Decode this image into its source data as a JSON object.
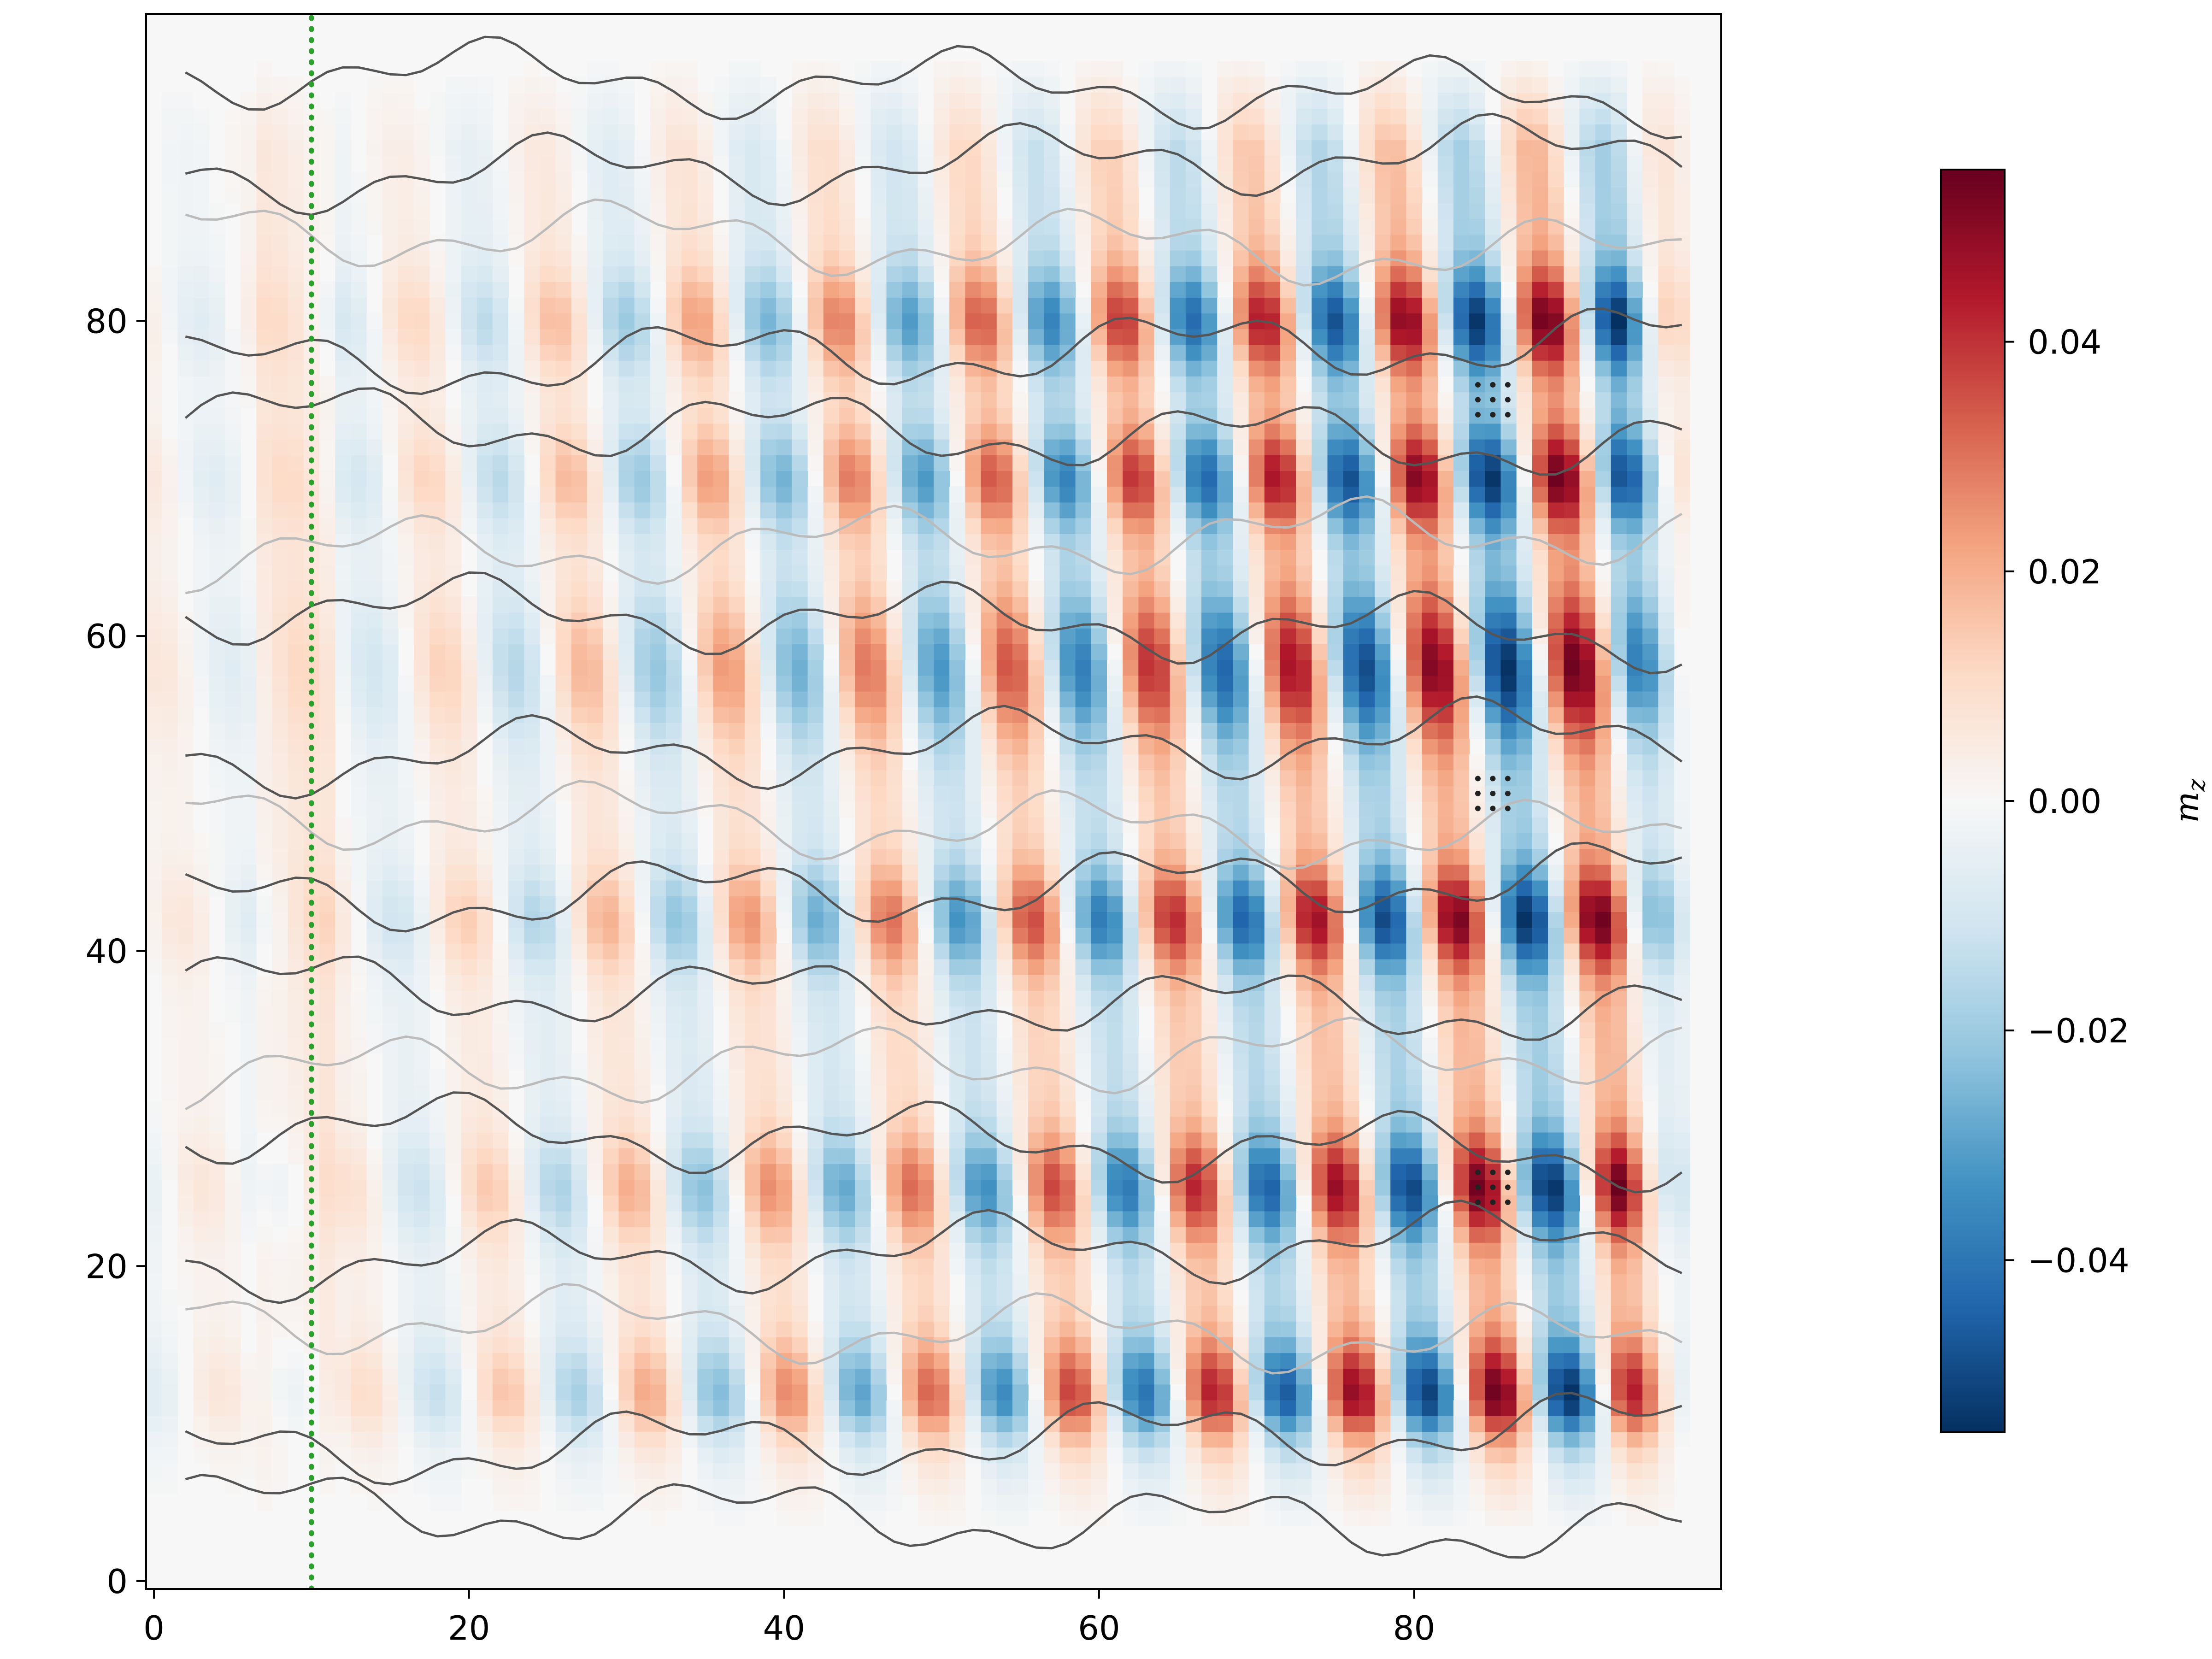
{
  "chart_data": {
    "type": "heatmap",
    "title": "",
    "xlabel": "",
    "ylabel": "",
    "xlim": [
      -0.5,
      99.5
    ],
    "ylim": [
      -0.5,
      99.5
    ],
    "x_ticks": [
      "0",
      "20",
      "40",
      "60",
      "80"
    ],
    "y_ticks": [
      "0",
      "20",
      "40",
      "60",
      "80"
    ],
    "grid": false,
    "colormap": "diverging blue-white-red (RdBu_r)",
    "colorbar": {
      "label": "m_z",
      "label_main": "m",
      "label_sub": "z",
      "range": [
        -0.055,
        0.055
      ],
      "ticks": [
        "0.04",
        "0.02",
        "0.00",
        "−0.02",
        "−0.04"
      ],
      "tick_values": [
        0.04,
        0.02,
        0.0,
        -0.02,
        -0.04
      ]
    },
    "field": {
      "description_of_pattern": "vertical stripes alternating in sign every ~4.5 columns, amplitude growing with x; stronger horizontal bands near y≈12, 25, 42, 58, 70, 80",
      "stripe_period_x": 9,
      "band_centers_y": [
        12,
        25,
        42,
        58,
        70,
        80
      ],
      "max_abs_value": 0.055
    },
    "overlays": {
      "source_line": {
        "style": "dotted",
        "color": "#2ca02c",
        "x": 10
      },
      "dot_markers": [
        {
          "x": 85,
          "y": 75
        },
        {
          "x": 85,
          "y": 50
        },
        {
          "x": 85,
          "y": 25
        }
      ],
      "contours": {
        "colors": [
          "#555555",
          "#bbbbbb"
        ]
      }
    }
  }
}
